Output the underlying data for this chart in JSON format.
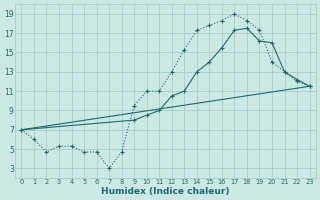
{
  "xlabel": "Humidex (Indice chaleur)",
  "bg_color": "#cce8e5",
  "grid_color": "#aaccca",
  "line_color": "#1a6b6b",
  "xlim_min": -0.5,
  "xlim_max": 23.5,
  "ylim_min": 2.0,
  "ylim_max": 20.0,
  "xticks": [
    0,
    1,
    2,
    3,
    4,
    5,
    6,
    7,
    8,
    9,
    10,
    11,
    12,
    13,
    14,
    15,
    16,
    17,
    18,
    19,
    20,
    21,
    22,
    23
  ],
  "yticks": [
    3,
    5,
    7,
    9,
    11,
    13,
    15,
    17,
    19
  ],
  "curve_dotted_x": [
    0,
    1,
    2,
    3,
    4,
    5,
    6,
    7,
    8,
    9,
    10,
    11,
    12,
    13,
    14,
    15,
    16,
    17,
    18,
    19,
    20,
    21,
    22,
    23
  ],
  "curve_dotted_y": [
    7.0,
    6.0,
    4.7,
    5.3,
    5.3,
    4.7,
    4.7,
    3.0,
    4.7,
    9.5,
    11.0,
    11.0,
    13.0,
    15.3,
    17.3,
    17.8,
    18.3,
    19.0,
    18.3,
    17.3,
    14.0,
    13.0,
    12.0,
    11.5
  ],
  "curve_line_x": [
    0,
    23
  ],
  "curve_line_y": [
    7.0,
    11.5
  ],
  "curve_solid_x": [
    0,
    9,
    10,
    11,
    12,
    13,
    14,
    15,
    16,
    17,
    18,
    19,
    20,
    21,
    22,
    23
  ],
  "curve_solid_y": [
    7.0,
    8.0,
    8.5,
    9.0,
    10.5,
    11.0,
    13.0,
    14.0,
    15.5,
    17.3,
    17.5,
    16.2,
    16.0,
    13.0,
    12.2,
    11.5
  ]
}
